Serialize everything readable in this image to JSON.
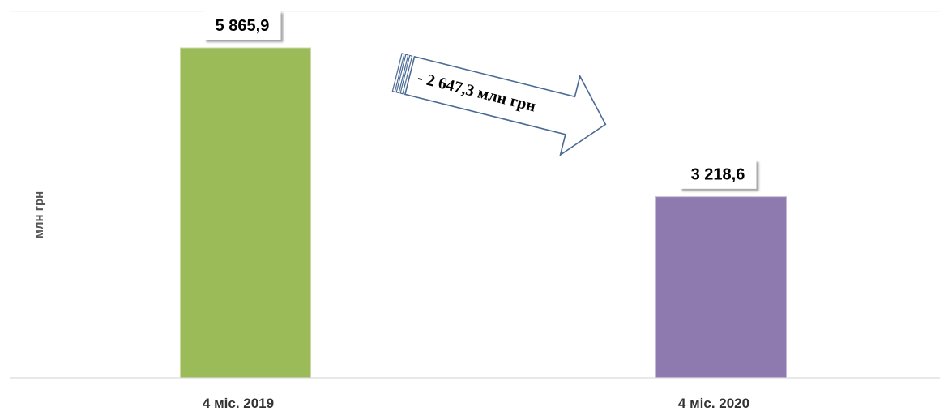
{
  "chart_data": {
    "type": "bar",
    "categories": [
      "4 міс. 2019",
      "4 міс. 2020"
    ],
    "values": [
      5865.9,
      3218.6
    ],
    "value_labels": [
      "5 865,9",
      "3 218,6"
    ],
    "ylabel": "млн грн",
    "ylim": [
      0,
      5865.9
    ],
    "colors": [
      "#9bbb59",
      "#8f7ab0"
    ],
    "annotation": "- 2 647,3 млн грн",
    "grid": false,
    "legend": "none"
  }
}
